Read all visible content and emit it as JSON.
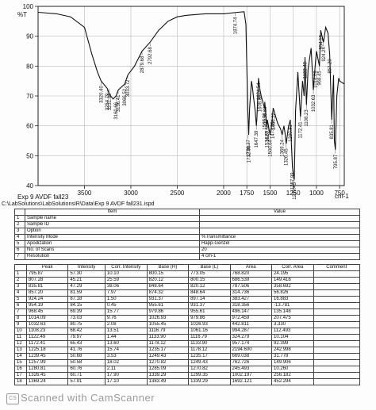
{
  "chart_data": {
    "type": "line",
    "ylabel_unit": "%T",
    "xlabel_unit": "cm-1",
    "xlim": [
      4000,
      700
    ],
    "ylim": [
      40,
      100
    ],
    "x_ticks": [
      3500,
      3000,
      2500,
      2000,
      1750,
      1500,
      1250,
      1000,
      750
    ],
    "y_ticks": [
      100,
      90,
      80,
      70,
      60,
      50,
      40
    ],
    "grid": true,
    "sample_caption": "Exp 9 AVDF fall23",
    "path_caption": "C:\\LabSolutions\\LabSolutionsIR\\Data\\Exp 9 AVDF fall231.ispd",
    "spectrum": [
      [
        4000,
        98
      ],
      [
        3800,
        97.5
      ],
      [
        3650,
        96.5
      ],
      [
        3500,
        93
      ],
      [
        3420,
        84
      ],
      [
        3360,
        78
      ],
      [
        3320,
        75
      ],
      [
        3254,
        72.5
      ],
      [
        3231,
        70.5
      ],
      [
        3191,
        69
      ],
      [
        3160,
        70
      ],
      [
        3136,
        72
      ],
      [
        3066,
        74
      ],
      [
        3033,
        77
      ],
      [
        2960,
        80
      ],
      [
        2879,
        85
      ],
      [
        2793,
        88
      ],
      [
        2700,
        92
      ],
      [
        2600,
        95
      ],
      [
        2500,
        96.5
      ],
      [
        2400,
        97
      ],
      [
        2200,
        97.5
      ],
      [
        2000,
        97.5
      ],
      [
        1850,
        98
      ],
      [
        1780,
        98.2
      ],
      [
        1760,
        94
      ],
      [
        1740,
        65
      ],
      [
        1730,
        57
      ],
      [
        1720,
        66
      ],
      [
        1700,
        75
      ],
      [
        1690,
        73
      ],
      [
        1680,
        70
      ],
      [
        1660,
        65
      ],
      [
        1647,
        60
      ],
      [
        1640,
        63
      ],
      [
        1625,
        76
      ],
      [
        1608,
        72
      ],
      [
        1595,
        70
      ],
      [
        1560,
        66
      ],
      [
        1557,
        68
      ],
      [
        1535,
        60
      ],
      [
        1528,
        62
      ],
      [
        1500,
        57
      ],
      [
        1487,
        59
      ],
      [
        1474,
        63
      ],
      [
        1466,
        66
      ],
      [
        1420,
        61
      ],
      [
        1387,
        59
      ],
      [
        1369,
        57
      ],
      [
        1351,
        60
      ],
      [
        1340,
        58
      ],
      [
        1326,
        54
      ],
      [
        1300,
        60
      ],
      [
        1281,
        62
      ],
      [
        1258,
        46
      ],
      [
        1239,
        42
      ],
      [
        1225,
        65
      ],
      [
        1200,
        78
      ],
      [
        1172,
        63
      ],
      [
        1150,
        75
      ],
      [
        1133,
        70
      ],
      [
        1123,
        83
      ],
      [
        1108,
        67
      ],
      [
        1090,
        79
      ],
      [
        1057,
        86
      ],
      [
        1033,
        72
      ],
      [
        1014,
        80
      ],
      [
        1000,
        85
      ],
      [
        968,
        80
      ],
      [
        954,
        92
      ],
      [
        924,
        88
      ],
      [
        900,
        93
      ],
      [
        875,
        91
      ],
      [
        857,
        84
      ],
      [
        835,
        62
      ],
      [
        815,
        77
      ],
      [
        807,
        55
      ],
      [
        796,
        52
      ],
      [
        780,
        70
      ],
      [
        760,
        76
      ],
      [
        750,
        75
      ],
      [
        700,
        74
      ]
    ],
    "peaks": [
      [
        3320.4,
        75
      ],
      [
        3231.88,
        72.5
      ],
      [
        3254.79,
        72.5
      ],
      [
        3160.66,
        69.5
      ],
      [
        3136.41,
        72
      ],
      [
        3066.52,
        74
      ],
      [
        3033.72,
        77
      ],
      [
        2879.68,
        85
      ],
      [
        2792.68,
        88
      ],
      [
        1624.54,
        76
      ],
      [
        1647.39,
        60
      ],
      [
        1608.86,
        72
      ],
      [
        1560.36,
        66
      ],
      [
        1556.88,
        68
      ],
      [
        1534.69,
        60
      ],
      [
        1527.56,
        62
      ],
      [
        1473.36,
        63
      ],
      [
        1466.22,
        66
      ],
      [
        1500.64,
        57
      ],
      [
        1369.24,
        57
      ],
      [
        1326.45,
        54
      ],
      [
        1280.81,
        62
      ],
      [
        1257.99,
        46
      ],
      [
        1239.45,
        42
      ],
      [
        1172.41,
        63
      ],
      [
        1122.49,
        83
      ],
      [
        1108.23,
        67
      ],
      [
        1032.63,
        72
      ],
      [
        1014.09,
        80
      ],
      [
        968.45,
        80
      ],
      [
        954.19,
        92
      ],
      [
        924.24,
        88
      ],
      [
        857.2,
        84
      ],
      [
        835.81,
        62
      ],
      [
        795.87,
        52
      ],
      [
        1736.27,
        57
      ],
      [
        1732.0,
        55
      ],
      [
        1874.74,
        98
      ]
    ]
  },
  "info_table": {
    "header_item": "Item",
    "header_value": "Value",
    "rows": [
      {
        "n": "1",
        "item": "Sample name",
        "value": ""
      },
      {
        "n": "2",
        "item": "Sample ID",
        "value": ""
      },
      {
        "n": "3",
        "item": "Option",
        "value": ""
      },
      {
        "n": "4",
        "item": "Intensity Mode",
        "value": "%Transmittance"
      },
      {
        "n": "5",
        "item": "Apodization",
        "value": "Happ-Genzel"
      },
      {
        "n": "6",
        "item": "No. of Scans",
        "value": "20"
      },
      {
        "n": "7",
        "item": "Resolution",
        "value": "4 cm-1"
      }
    ]
  },
  "peak_table": {
    "headers": [
      "",
      "Peak",
      "Intensity",
      "Corr. Intensity",
      "Base (H)",
      "Base (L)",
      "Area",
      "Corr. Area",
      "Comment"
    ],
    "rows": [
      [
        "1",
        "795.87",
        "57.30",
        "10.10",
        "800.15",
        "773.05",
        "768.820",
        "24.195",
        ""
      ],
      [
        "2",
        "807.28",
        "45.21",
        "25.59",
        "820.12",
        "800.15",
        "686.539",
        "149.418",
        ""
      ],
      [
        "3",
        "835.81",
        "47.29",
        "38.06",
        "848.64",
        "820.12",
        "787.506",
        "358.692",
        ""
      ],
      [
        "4",
        "857.20",
        "81.59",
        "7.97",
        "874.32",
        "848.64",
        "314.736",
        "56.826",
        ""
      ],
      [
        "5",
        "924.24",
        "87.18",
        "1.50",
        "931.37",
        "897.14",
        "383.427",
        "16.883",
        ""
      ],
      [
        "6",
        "954.19",
        "84.15",
        "0.45",
        "955.61",
        "931.37",
        "318.356",
        "-13.781",
        ""
      ],
      [
        "7",
        "968.45",
        "69.39",
        "15.77",
        "979.86",
        "955.61",
        "496.147",
        "135.148",
        ""
      ],
      [
        "8",
        "1014.09",
        "73.03",
        "9.76",
        "1026.93",
        "979.86",
        "972.459",
        "207.475",
        ""
      ],
      [
        "9",
        "1032.63",
        "80.75",
        "2.08",
        "1055.45",
        "1026.93",
        "442.811",
        "3.330",
        ""
      ],
      [
        "10",
        "1108.23",
        "68.42",
        "13.51",
        "1116.79",
        "1061.16",
        "994.287",
        "112.493",
        ""
      ],
      [
        "11",
        "1122.49",
        "79.97",
        "1.44",
        "1133.90",
        "1116.79",
        "324.279",
        "10.104",
        ""
      ],
      [
        "12",
        "1172.41",
        "65.43",
        "13.60",
        "1178.12",
        "1133.90",
        "957.174",
        "92.399",
        ""
      ],
      [
        "13",
        "1225.18",
        "41.76",
        "15.74",
        "1235.17",
        "1178.12",
        "2194.600",
        "242.998",
        ""
      ],
      [
        "14",
        "1239.45",
        "50.68",
        "3.53",
        "1249.43",
        "1235.17",
        "669.038",
        "31.778",
        ""
      ],
      [
        "15",
        "1257.99",
        "50.58",
        "18.02",
        "1270.82",
        "1249.43",
        "762.726",
        "149.906",
        ""
      ],
      [
        "16",
        "1280.81",
        "60.76",
        "2.11",
        "1285.09",
        "1270.82",
        "245.493",
        "10.260",
        ""
      ],
      [
        "17",
        "1326.45",
        "60.71",
        "17.90",
        "1339.29",
        "1299.35",
        "1002.197",
        "256.182",
        ""
      ],
      [
        "18",
        "1369.24",
        "57.91",
        "17.10",
        "1383.49",
        "1339.29",
        "1692.121",
        "452.294",
        ""
      ]
    ]
  },
  "watermark": "Scanned with CamScanner",
  "watermark_logo": "CS"
}
